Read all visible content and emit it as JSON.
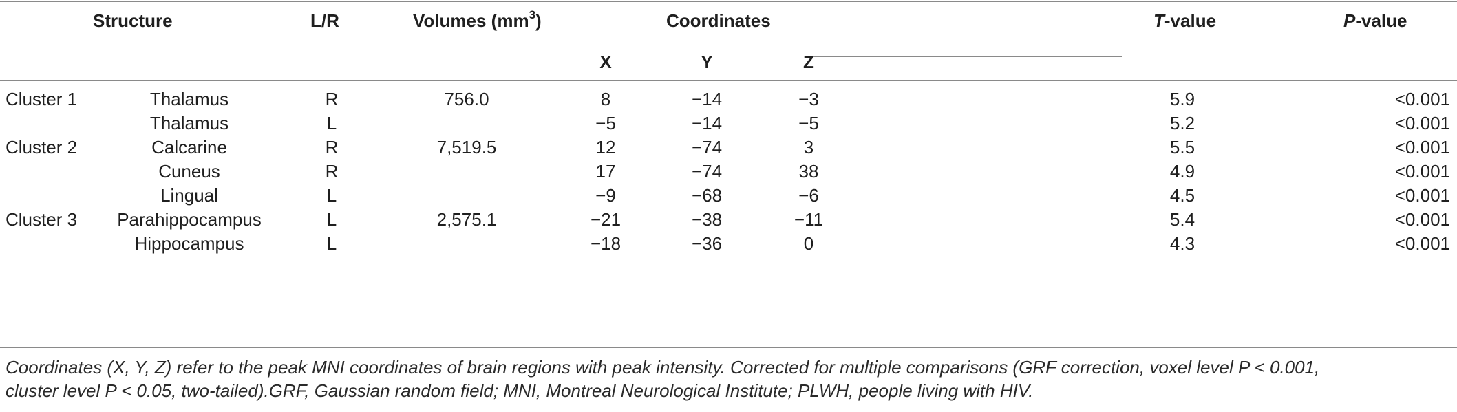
{
  "table": {
    "headers": {
      "structure": "Structure",
      "lr": "L/R",
      "volumes_prefix": "Volumes (mm",
      "volumes_sup": "3",
      "volumes_suffix": ")",
      "coordinates": "Coordinates",
      "x": "X",
      "y": "Y",
      "z": "Z",
      "t_italic": "T",
      "t_rest": "-value",
      "p_italic": "P",
      "p_rest": "-value"
    },
    "rows": [
      {
        "cluster": "Cluster 1",
        "structure": "Thalamus",
        "lr": "R",
        "volume": "756.0",
        "x": "8",
        "y": "−14",
        "z": "−3",
        "t": "5.9",
        "p": "<0.001"
      },
      {
        "cluster": "",
        "structure": "Thalamus",
        "lr": "L",
        "volume": "",
        "x": "−5",
        "y": "−14",
        "z": "−5",
        "t": "5.2",
        "p": "<0.001"
      },
      {
        "cluster": "Cluster 2",
        "structure": "Calcarine",
        "lr": "R",
        "volume": "7,519.5",
        "x": "12",
        "y": "−74",
        "z": "3",
        "t": "5.5",
        "p": "<0.001"
      },
      {
        "cluster": "",
        "structure": "Cuneus",
        "lr": "R",
        "volume": "",
        "x": "17",
        "y": "−74",
        "z": "38",
        "t": "4.9",
        "p": "<0.001"
      },
      {
        "cluster": "",
        "structure": "Lingual",
        "lr": "L",
        "volume": "",
        "x": "−9",
        "y": "−68",
        "z": "−6",
        "t": "4.5",
        "p": "<0.001"
      },
      {
        "cluster": "Cluster 3",
        "structure": "Parahippocampus",
        "lr": "L",
        "volume": "2,575.1",
        "x": "−21",
        "y": "−38",
        "z": "−11",
        "t": "5.4",
        "p": "<0.001"
      },
      {
        "cluster": "",
        "structure": "Hippocampus",
        "lr": "L",
        "volume": "",
        "x": "−18",
        "y": "−36",
        "z": "0",
        "t": "4.3",
        "p": "<0.001"
      }
    ]
  },
  "footnote": {
    "line1": "Coordinates (X, Y, Z) refer to the peak MNI coordinates of brain regions with peak intensity. Corrected for multiple comparisons (GRF correction, voxel level P < 0.001,",
    "line2": "cluster level P < 0.05, two-tailed).GRF, Gaussian random field; MNI, Montreal Neurological Institute; PLWH, people living with HIV."
  }
}
